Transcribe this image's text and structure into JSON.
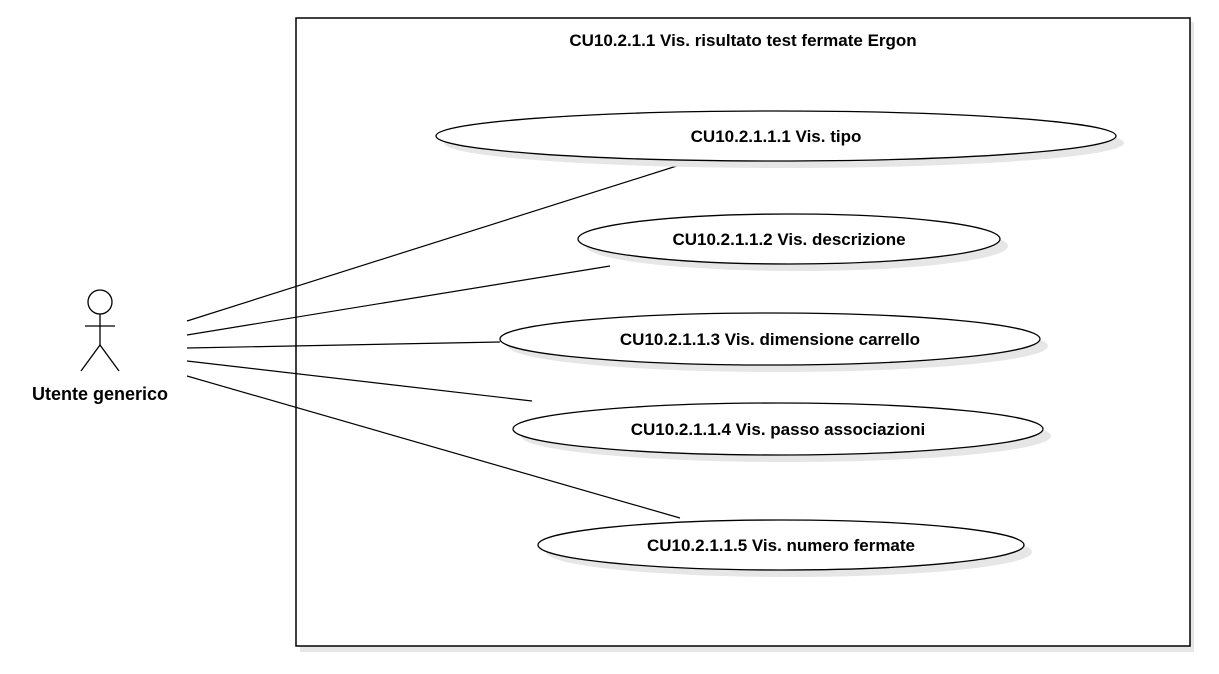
{
  "diagram": {
    "type": "uml-use-case",
    "system_boundary": {
      "title": "CU10.2.1.1 Vis. risultato test fermate Ergon"
    },
    "actor": {
      "name": "Utente generico",
      "icon": "stick-figure-icon"
    },
    "use_cases": [
      {
        "id": "uc1",
        "label": "CU10.2.1.1.1 Vis. tipo"
      },
      {
        "id": "uc2",
        "label": "CU10.2.1.1.2 Vis. descrizione"
      },
      {
        "id": "uc3",
        "label": "CU10.2.1.1.3 Vis. dimensione carrello"
      },
      {
        "id": "uc4",
        "label": "CU10.2.1.1.4 Vis. passo associazioni"
      },
      {
        "id": "uc5",
        "label": "CU10.2.1.1.5 Vis. numero fermate"
      }
    ],
    "associations": [
      {
        "from": "actor",
        "to": "uc1"
      },
      {
        "from": "actor",
        "to": "uc2"
      },
      {
        "from": "actor",
        "to": "uc3"
      },
      {
        "from": "actor",
        "to": "uc4"
      },
      {
        "from": "actor",
        "to": "uc5"
      }
    ],
    "colors": {
      "stroke": "#000000",
      "fill": "#ffffff",
      "shadow": "#e6e6e6"
    }
  }
}
